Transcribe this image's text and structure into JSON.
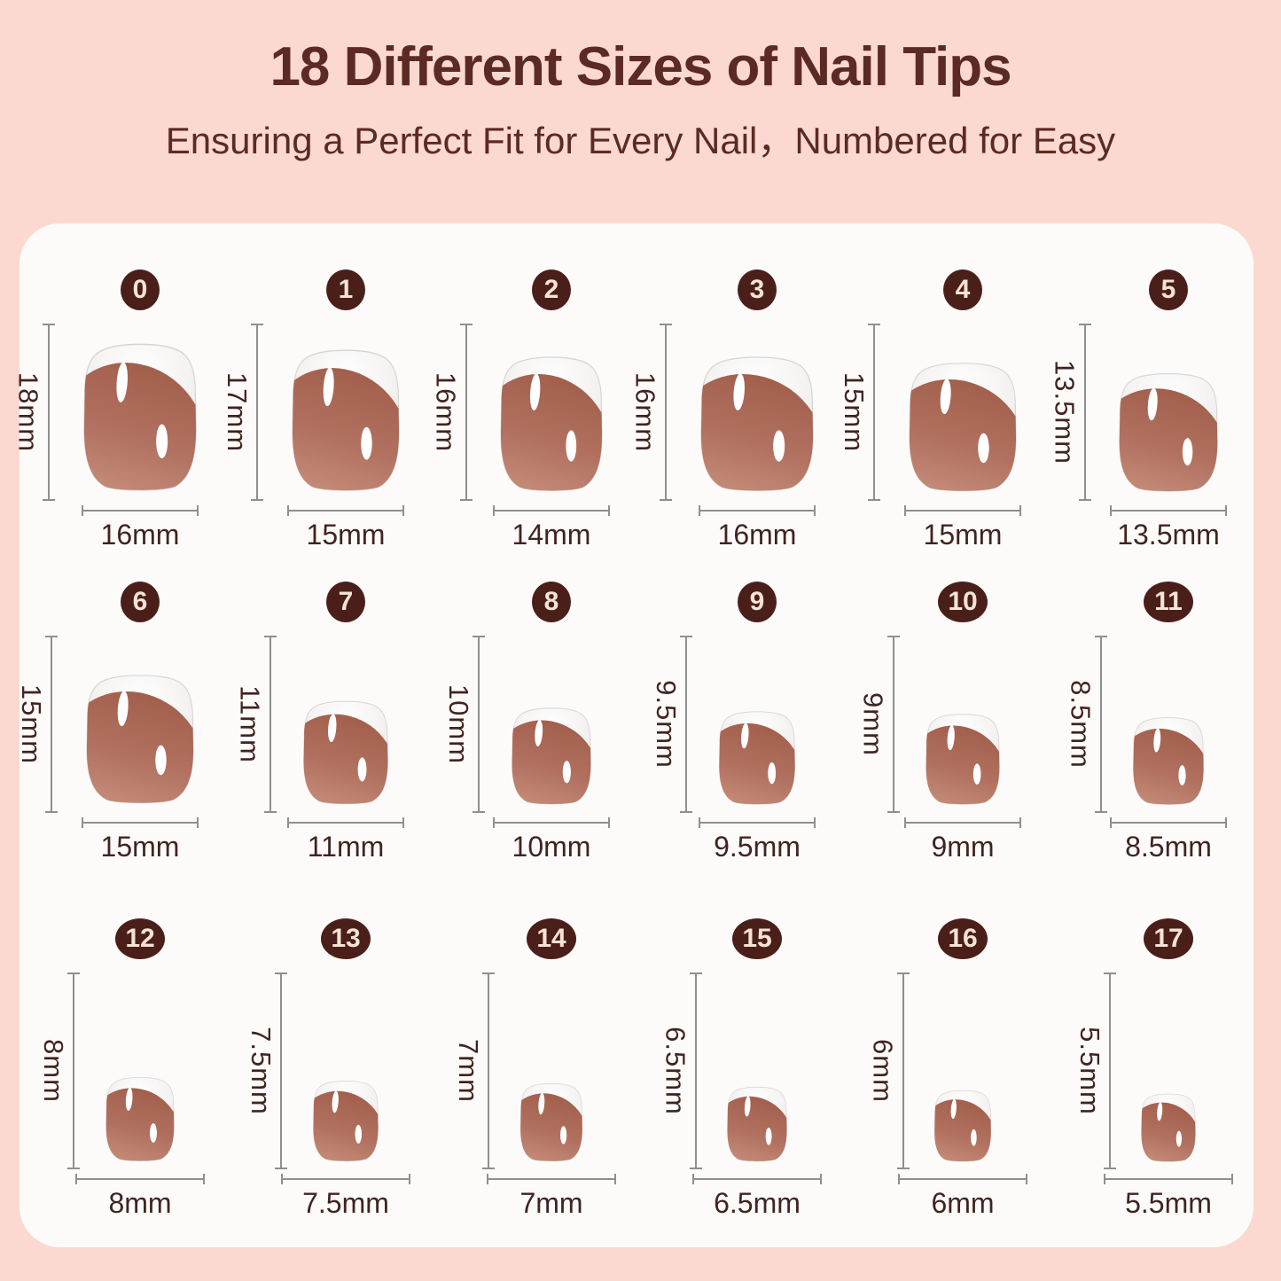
{
  "header": {
    "title": "18 Different Sizes of Nail Tips",
    "subtitle": "Ensuring a Perfect Fit for Every Nail，Numbered for Easy"
  },
  "unit": "mm",
  "sizes": [
    {
      "number": "0",
      "height": "18mm",
      "width": "16mm",
      "height_mm": 18,
      "width_mm": 16
    },
    {
      "number": "1",
      "height": "17mm",
      "width": "15mm",
      "height_mm": 17,
      "width_mm": 15
    },
    {
      "number": "2",
      "height": "16mm",
      "width": "14mm",
      "height_mm": 16,
      "width_mm": 14
    },
    {
      "number": "3",
      "height": "16mm",
      "width": "16mm",
      "height_mm": 16,
      "width_mm": 16
    },
    {
      "number": "4",
      "height": "15mm",
      "width": "15mm",
      "height_mm": 15,
      "width_mm": 15
    },
    {
      "number": "5",
      "height": "13.5mm",
      "width": "13.5mm",
      "height_mm": 13.5,
      "width_mm": 13.5
    },
    {
      "number": "6",
      "height": "15mm",
      "width": "15mm",
      "height_mm": 15,
      "width_mm": 15
    },
    {
      "number": "7",
      "height": "11mm",
      "width": "11mm",
      "height_mm": 11,
      "width_mm": 11
    },
    {
      "number": "8",
      "height": "10mm",
      "width": "10mm",
      "height_mm": 10,
      "width_mm": 10
    },
    {
      "number": "9",
      "height": "9.5mm",
      "width": "9.5mm",
      "height_mm": 9.5,
      "width_mm": 9.5
    },
    {
      "number": "10",
      "height": "9mm",
      "width": "9mm",
      "height_mm": 9,
      "width_mm": 9
    },
    {
      "number": "11",
      "height": "8.5mm",
      "width": "8.5mm",
      "height_mm": 8.5,
      "width_mm": 8.5
    },
    {
      "number": "12",
      "height": "8mm",
      "width": "8mm",
      "height_mm": 8,
      "width_mm": 8
    },
    {
      "number": "13",
      "height": "7.5mm",
      "width": "7.5mm",
      "height_mm": 7.5,
      "width_mm": 7.5
    },
    {
      "number": "14",
      "height": "7mm",
      "width": "7mm",
      "height_mm": 7,
      "width_mm": 7
    },
    {
      "number": "15",
      "height": "6.5mm",
      "width": "6.5mm",
      "height_mm": 6.5,
      "width_mm": 6.5
    },
    {
      "number": "16",
      "height": "6mm",
      "width": "6mm",
      "height_mm": 6,
      "width_mm": 6
    },
    {
      "number": "17",
      "height": "5.5mm",
      "width": "5.5mm",
      "height_mm": 5.5,
      "width_mm": 5.5
    }
  ],
  "colors": {
    "background": "#fcd9d0",
    "card": "#fdfbf9",
    "title": "#5c2a24",
    "badge_bg": "#4a1f1a",
    "badge_text": "#f5e3d3",
    "measure_line": "#8f8f8f",
    "measure_label": "#3f2420",
    "nail_tip_light": "#ffffff",
    "nail_tip_shade": "#d8d5d4",
    "nail_body_dark": "#a25f4c",
    "nail_body": "#b27160",
    "nail_body_light": "#c8937e"
  }
}
